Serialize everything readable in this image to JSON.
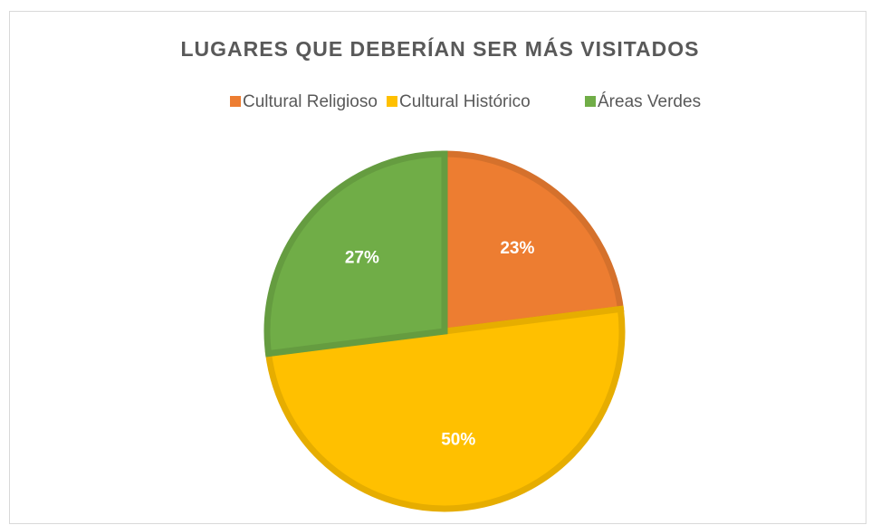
{
  "chart_data": {
    "type": "pie",
    "title": "LUGARES QUE DEBERÍAN SER MÁS VISITADOS",
    "categories": [
      "Cultural Religioso",
      "Cultural Histórico",
      "Áreas Verdes"
    ],
    "values": [
      23,
      50,
      27
    ],
    "value_labels": [
      "23%",
      "50%",
      "27%"
    ],
    "colors": [
      "#ED7D31",
      "#FFC000",
      "#70AD47"
    ],
    "legend": "top"
  }
}
